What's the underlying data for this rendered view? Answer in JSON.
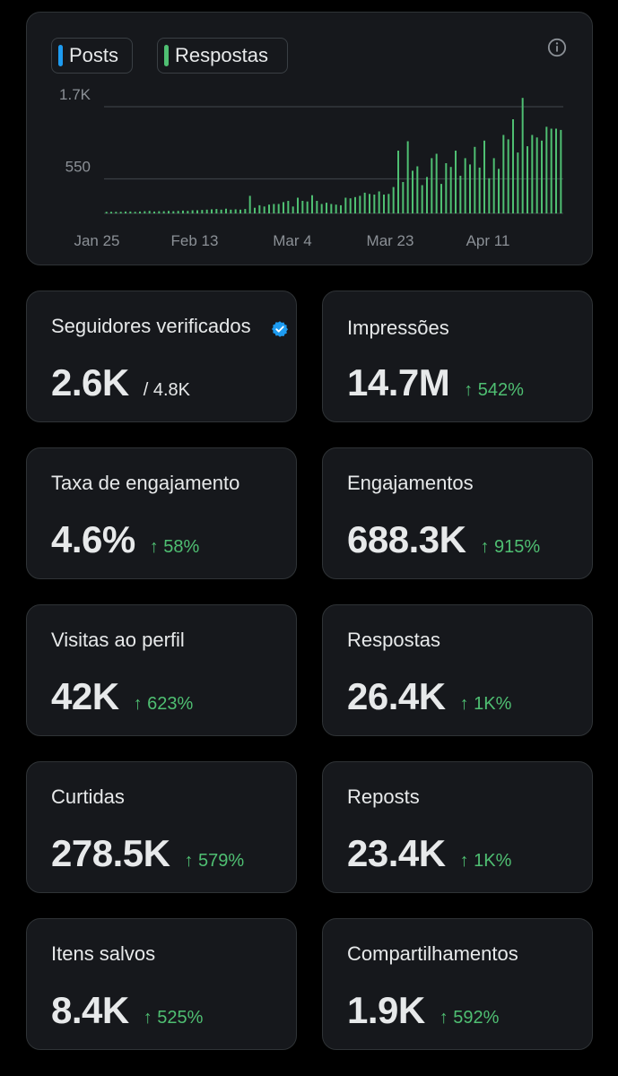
{
  "chart": {
    "legend": [
      {
        "label": "Posts",
        "color": "#1d9bf0"
      },
      {
        "label": "Respostas",
        "color": "#4fbf72"
      }
    ],
    "info_icon": "info-icon"
  },
  "chart_data": {
    "type": "bar",
    "ytick_labels": [
      "1.7K",
      "550"
    ],
    "yticks": [
      1700,
      550
    ],
    "ylim": [
      0,
      1950
    ],
    "xtick_labels": [
      "Jan 25",
      "Feb 13",
      "Mar 4",
      "Mar 23",
      "Apr 11"
    ],
    "grid": true,
    "series": [
      {
        "name": "Respostas",
        "color": "#4fbf72",
        "values": [
          25,
          25,
          25,
          25,
          30,
          30,
          25,
          30,
          35,
          40,
          30,
          35,
          35,
          40,
          35,
          40,
          45,
          40,
          50,
          50,
          55,
          60,
          65,
          70,
          60,
          75,
          60,
          65,
          60,
          70,
          280,
          90,
          130,
          110,
          140,
          150,
          150,
          180,
          200,
          110,
          250,
          200,
          190,
          290,
          200,
          150,
          170,
          150,
          140,
          130,
          250,
          240,
          260,
          280,
          330,
          310,
          300,
          350,
          300,
          310,
          420,
          1000,
          500,
          1150,
          680,
          750,
          450,
          580,
          880,
          950,
          470,
          800,
          740,
          1000,
          600,
          880,
          780,
          1060,
          730,
          1160,
          560,
          880,
          710,
          1250,
          1180,
          1500,
          970,
          1840,
          1070,
          1250,
          1210,
          1160,
          1380,
          1350,
          1350,
          1330
        ],
        "values_unit_note_removed": null
      }
    ]
  },
  "metrics": [
    {
      "label": "Seguidores verificados",
      "value": "2.6K",
      "total": "/ 4.8K",
      "icon": "verified-badge-icon"
    },
    {
      "label": "Impressões",
      "value": "14.7M",
      "change": "↑ 542%"
    },
    {
      "label": "Taxa de engajamento",
      "value": "4.6%",
      "change": "↑ 58%"
    },
    {
      "label": "Engajamentos",
      "value": "688.3K",
      "change": "↑ 915%"
    },
    {
      "label": "Visitas ao perfil",
      "value": "42K",
      "change": "↑ 623%"
    },
    {
      "label": "Respostas",
      "value": "26.4K",
      "change": "↑ 1K%"
    },
    {
      "label": "Curtidas",
      "value": "278.5K",
      "change": "↑ 579%"
    },
    {
      "label": "Reposts",
      "value": "23.4K",
      "change": "↑ 1K%"
    },
    {
      "label": "Itens salvos",
      "value": "8.4K",
      "change": "↑ 525%"
    },
    {
      "label": "Compartilhamentos",
      "value": "1.9K",
      "change": "↑ 592%"
    }
  ]
}
